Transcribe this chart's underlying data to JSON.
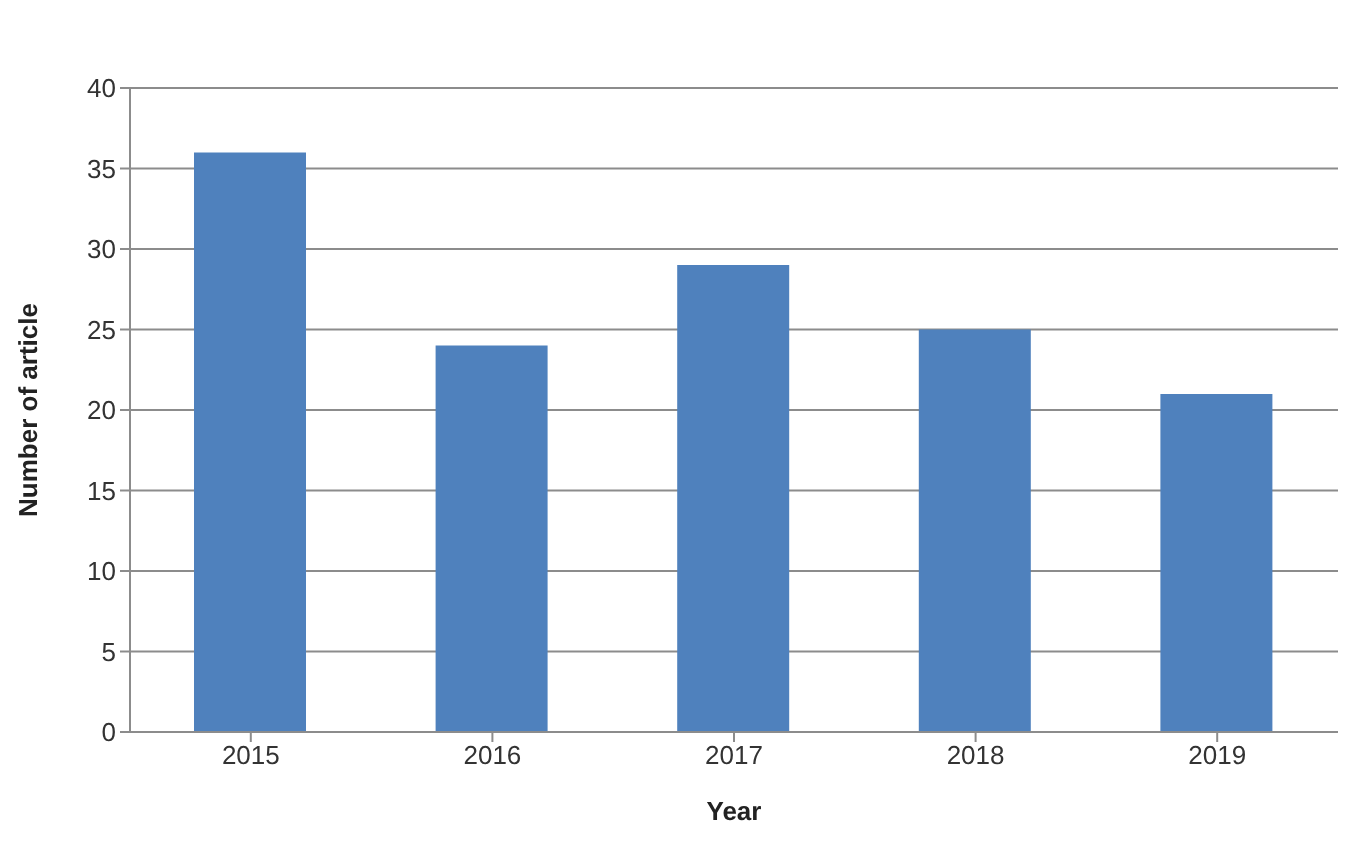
{
  "chart_data": {
    "type": "bar",
    "xlabel": "Year",
    "ylabel": "Number of article",
    "categories": [
      "2015",
      "2016",
      "2017",
      "2018",
      "2019"
    ],
    "values": [
      36,
      24,
      29,
      25,
      21
    ],
    "color": "#4f81bd",
    "ylim": [
      0,
      40
    ],
    "yticks": [
      0,
      5,
      10,
      15,
      20,
      25,
      30,
      35,
      40
    ],
    "grid": "y",
    "legend": false
  }
}
